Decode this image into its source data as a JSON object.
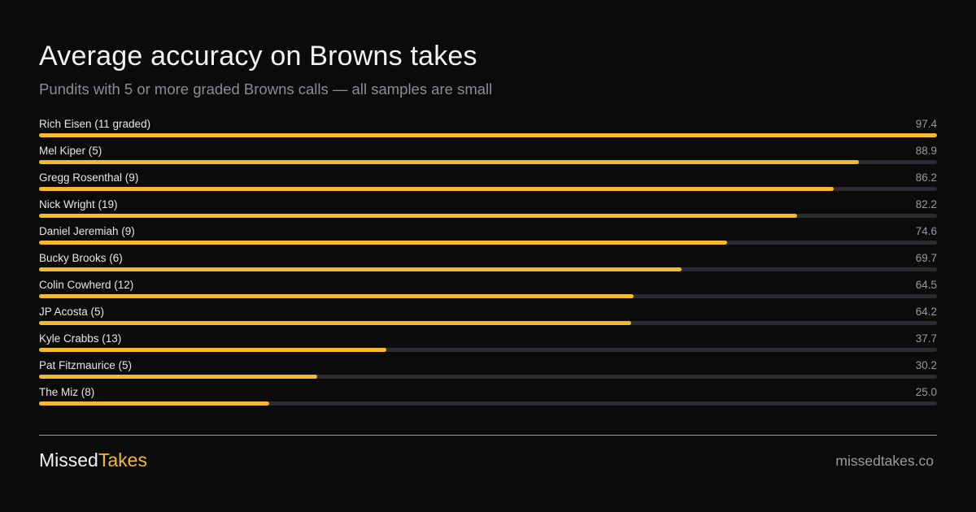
{
  "title": "Average accuracy on Browns takes",
  "subtitle": "Pundits with 5 or more graded Browns calls — all samples are small",
  "chart_data": {
    "type": "bar",
    "orientation": "horizontal",
    "title": "Average accuracy on Browns takes",
    "subtitle": "Pundits with 5 or more graded Browns calls — all samples are small",
    "xlim": [
      0,
      97.4
    ],
    "grid": false,
    "colors": {
      "bar": "#f4ba2a",
      "track": "#2b2b30"
    },
    "categories": [
      "Rich Eisen (11 graded)",
      "Mel Kiper (5)",
      "Gregg Rosenthal (9)",
      "Nick Wright (19)",
      "Daniel Jeremiah (9)",
      "Bucky Brooks (6)",
      "Colin Cowherd (12)",
      "JP Acosta (5)",
      "Kyle Crabbs (13)",
      "Pat Fitzmaurice (5)",
      "The Miz (8)"
    ],
    "values": [
      97.4,
      88.9,
      86.2,
      82.2,
      74.6,
      69.7,
      64.5,
      64.2,
      37.7,
      30.2,
      25.0
    ],
    "value_labels": [
      "97.4",
      "88.9",
      "86.2",
      "82.2",
      "74.6",
      "69.7",
      "64.5",
      "64.2",
      "37.7",
      "30.2",
      "25.0"
    ]
  },
  "footer": {
    "brand_part1": "Missed",
    "brand_part2": "Takes",
    "site": "missedtakes.co",
    "accent": "#f4ba2a"
  }
}
